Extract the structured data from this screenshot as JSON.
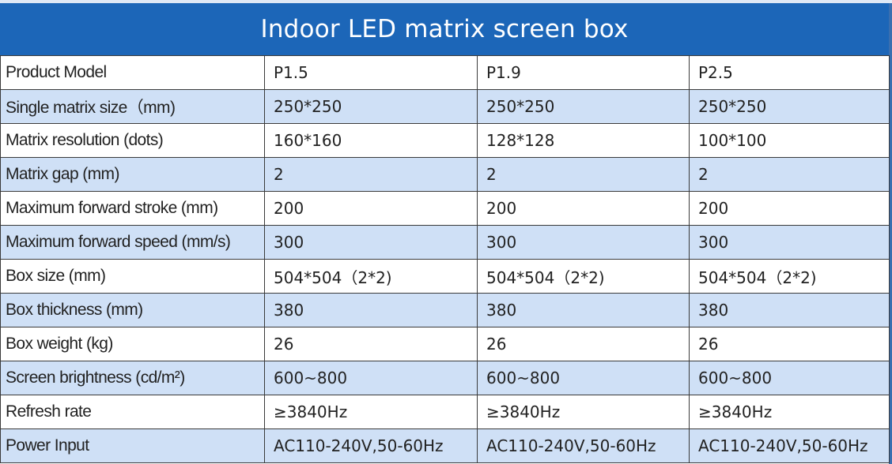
{
  "title": "Indoor LED matrix screen box",
  "rows": [
    {
      "label": "Product Model",
      "values": [
        "P1.5",
        "P1.9",
        "P2.5"
      ]
    },
    {
      "label": "Single matrix size（mm)",
      "values": [
        "250*250",
        "250*250",
        "250*250"
      ]
    },
    {
      "label": "Matrix resolution (dots)",
      "values": [
        "160*160",
        "128*128",
        "100*100"
      ]
    },
    {
      "label": "Matrix gap (mm)",
      "values": [
        "2",
        "2",
        "2"
      ]
    },
    {
      "label": "Maximum forward stroke (mm)",
      "values": [
        "200",
        "200",
        "200"
      ]
    },
    {
      "label": "Maximum forward speed (mm/s)",
      "values": [
        "300",
        "300",
        "300"
      ]
    },
    {
      "label": "Box size (mm)",
      "values": [
        "504*504（2*2)",
        "504*504（2*2)",
        "504*504（2*2)"
      ]
    },
    {
      "label": "Box thickness (mm)",
      "values": [
        "380",
        "380",
        "380"
      ]
    },
    {
      "label": "Box weight (kg)",
      "values": [
        "26",
        "26",
        "26"
      ]
    },
    {
      "label": "Screen brightness (cd/m²)",
      "values": [
        "600~800",
        "600~800",
        "600~800"
      ]
    },
    {
      "label": "Refresh rate",
      "values": [
        "≥3840Hz",
        "≥3840Hz",
        "≥3840Hz"
      ]
    },
    {
      "label": "Power Input",
      "values": [
        "AC110-240V,50-60Hz",
        "AC110-240V,50-60Hz",
        "AC110-240V,50-60Hz"
      ]
    }
  ],
  "colors": {
    "title_bg": "#1c66b8",
    "row_alt_bg": "#cfe0f6",
    "row_bg": "#ffffff",
    "border": "#3a3a3a"
  }
}
